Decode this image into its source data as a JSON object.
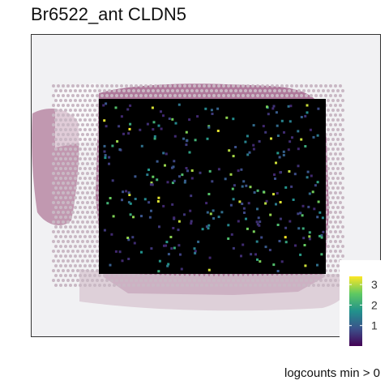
{
  "title": "Br6522_ant CLDN5",
  "caption": "logcounts min > 0",
  "chart_data": {
    "type": "heatmap",
    "title": "Br6522_ant CLDN5",
    "colorscale": "viridis",
    "color_range": [
      0,
      3.4
    ],
    "colorbar_ticks": [
      {
        "value": 1,
        "label": "1"
      },
      {
        "value": 2,
        "label": "2"
      },
      {
        "value": 3,
        "label": "3"
      }
    ],
    "zero_color": "#000000",
    "legend_position": "bottom-right",
    "caption": "logcounts min > 0",
    "grid": false
  },
  "colors": {
    "background": "#ffffff",
    "tissue_bg": "#f1f1f3",
    "tissue_pink": "#a5688e",
    "spot_zero": "#000000",
    "frame": "#333333"
  }
}
